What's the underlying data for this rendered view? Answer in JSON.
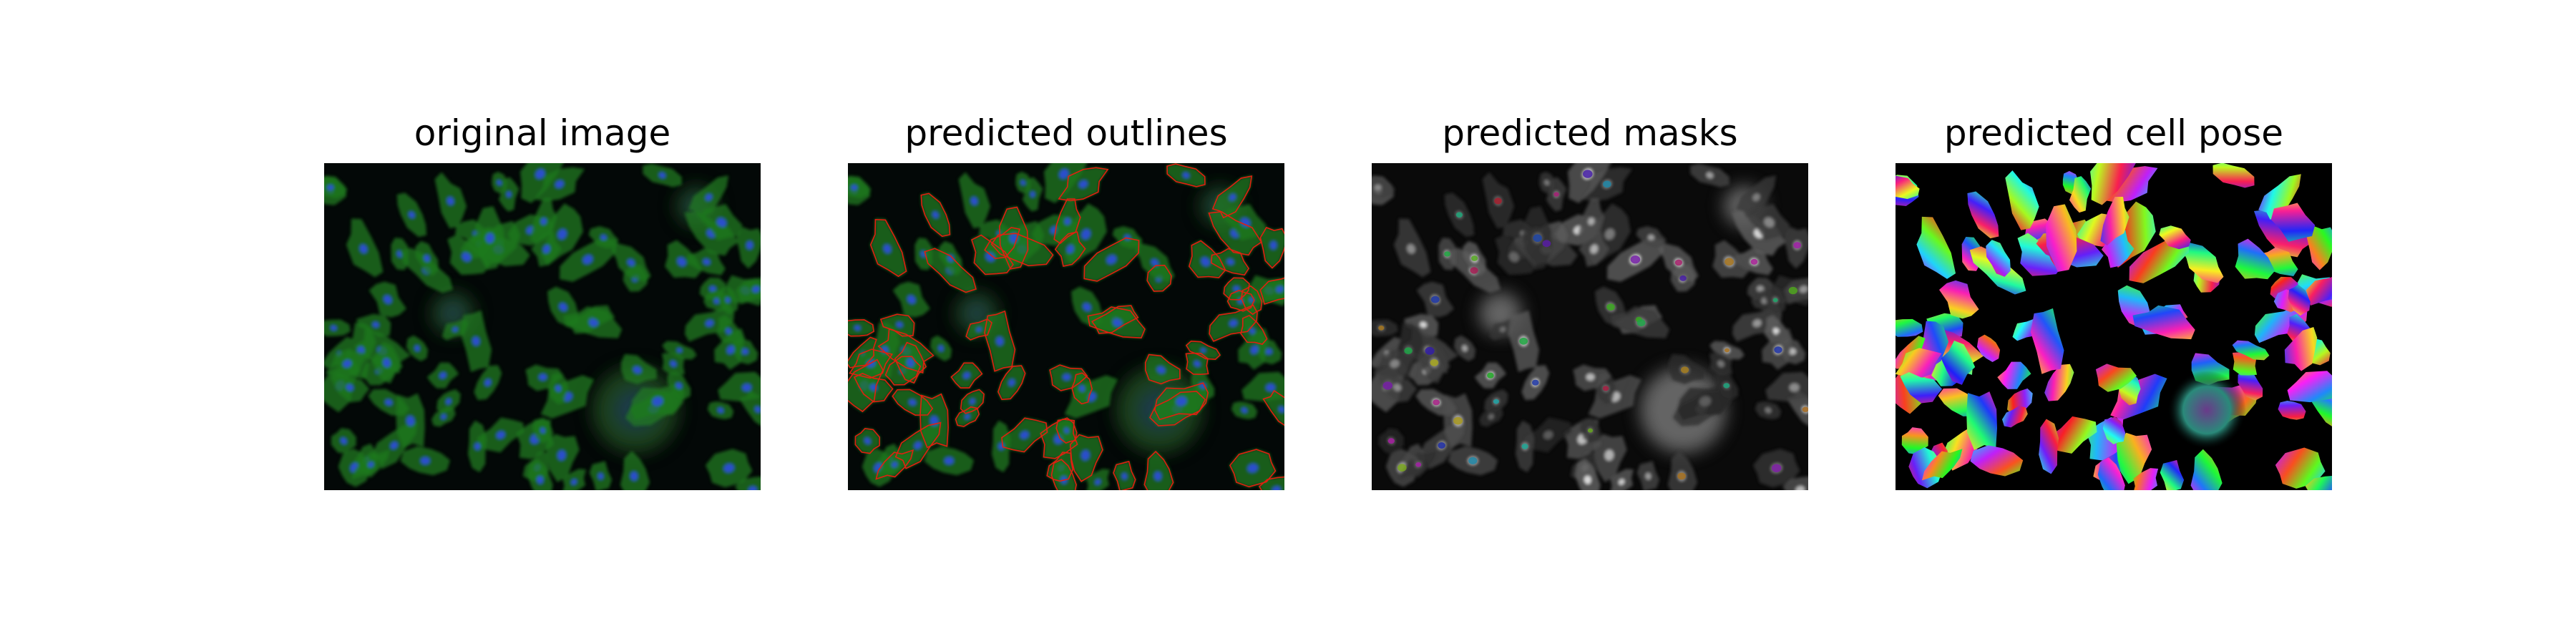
{
  "panels": [
    {
      "id": "original",
      "title": "original image"
    },
    {
      "id": "outlines",
      "title": "predicted outlines"
    },
    {
      "id": "masks",
      "title": "predicted masks"
    },
    {
      "id": "pose",
      "title": "predicted cell pose"
    }
  ],
  "colors": {
    "figure_background": "#ffffff",
    "image_background": "#030807",
    "cytoplasm": "#1f7a1f",
    "nucleus": "#2b4fd6",
    "outline": "#e02010"
  }
}
